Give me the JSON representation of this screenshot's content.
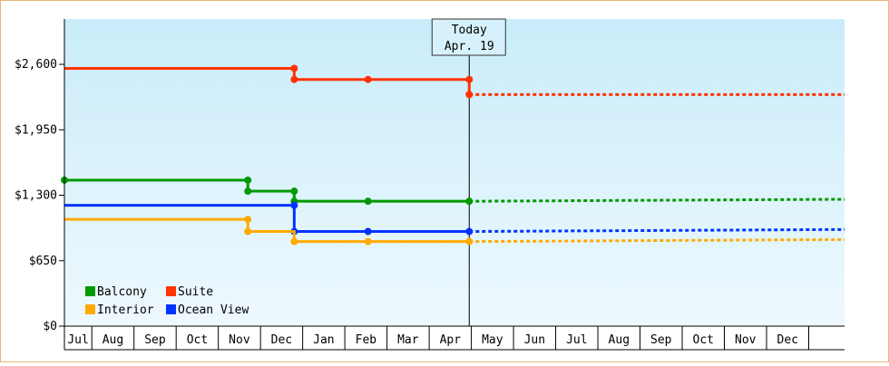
{
  "chart_data": {
    "type": "line",
    "line_style": "step",
    "y_axis": {
      "ticks": [
        {
          "value": 0,
          "label": "$0"
        },
        {
          "value": 650,
          "label": "$650"
        },
        {
          "value": 1300,
          "label": "$1,300"
        },
        {
          "value": 1950,
          "label": "$1,950"
        },
        {
          "value": 2600,
          "label": "$2,600"
        }
      ],
      "ylim": [
        0,
        3050
      ]
    },
    "x_axis": {
      "months": [
        "Jul",
        "Aug",
        "Sep",
        "Oct",
        "Nov",
        "Dec",
        "Jan",
        "Feb",
        "Mar",
        "Apr",
        "May",
        "Jun",
        "Jul",
        "Aug",
        "Sep",
        "Oct",
        "Nov",
        "Dec"
      ],
      "xlim": [
        0.0,
        18.5
      ]
    },
    "today": {
      "line1": "Today",
      "line2": "Apr. 19",
      "x": 9.6
    },
    "legend": {
      "placement": "bottom-left"
    },
    "series": [
      {
        "name": "Suite",
        "color": "#ff3300",
        "points": [
          [
            0.0,
            2560
          ],
          [
            5.45,
            2560
          ],
          [
            5.45,
            2450
          ],
          [
            7.2,
            2450
          ],
          [
            9.6,
            2450
          ],
          [
            9.6,
            2300
          ]
        ],
        "markers": [
          [
            5.45,
            2560
          ],
          [
            5.45,
            2450
          ],
          [
            7.2,
            2450
          ],
          [
            9.6,
            2450
          ],
          [
            9.6,
            2300
          ]
        ],
        "projection": [
          [
            9.6,
            2300
          ],
          [
            18.5,
            2300
          ]
        ]
      },
      {
        "name": "Balcony",
        "color": "#009900",
        "points": [
          [
            0.0,
            1450
          ],
          [
            4.35,
            1450
          ],
          [
            4.35,
            1340
          ],
          [
            5.45,
            1340
          ],
          [
            5.45,
            1240
          ],
          [
            7.2,
            1240
          ],
          [
            9.6,
            1240
          ]
        ],
        "markers": [
          [
            0.0,
            1450
          ],
          [
            4.35,
            1450
          ],
          [
            4.35,
            1340
          ],
          [
            5.45,
            1340
          ],
          [
            5.45,
            1240
          ],
          [
            7.2,
            1240
          ],
          [
            9.6,
            1240
          ]
        ],
        "projection": [
          [
            9.6,
            1240
          ],
          [
            18.5,
            1260
          ]
        ]
      },
      {
        "name": "Ocean View",
        "color": "#0033ff",
        "points": [
          [
            0.0,
            1200
          ],
          [
            5.45,
            1200
          ],
          [
            5.45,
            940
          ],
          [
            7.2,
            940
          ],
          [
            9.6,
            940
          ]
        ],
        "markers": [
          [
            5.45,
            1200
          ],
          [
            5.45,
            940
          ],
          [
            7.2,
            940
          ],
          [
            9.6,
            940
          ]
        ],
        "projection": [
          [
            9.6,
            940
          ],
          [
            18.5,
            960
          ]
        ]
      },
      {
        "name": "Interior",
        "color": "#ffaa00",
        "points": [
          [
            0.0,
            1060
          ],
          [
            4.35,
            1060
          ],
          [
            4.35,
            940
          ],
          [
            5.45,
            940
          ],
          [
            5.45,
            840
          ],
          [
            7.2,
            840
          ],
          [
            9.6,
            840
          ]
        ],
        "markers": [
          [
            4.35,
            1060
          ],
          [
            4.35,
            940
          ],
          [
            5.45,
            840
          ],
          [
            7.2,
            840
          ],
          [
            9.6,
            840
          ]
        ],
        "projection": [
          [
            9.6,
            840
          ],
          [
            18.5,
            860
          ]
        ]
      }
    ]
  }
}
